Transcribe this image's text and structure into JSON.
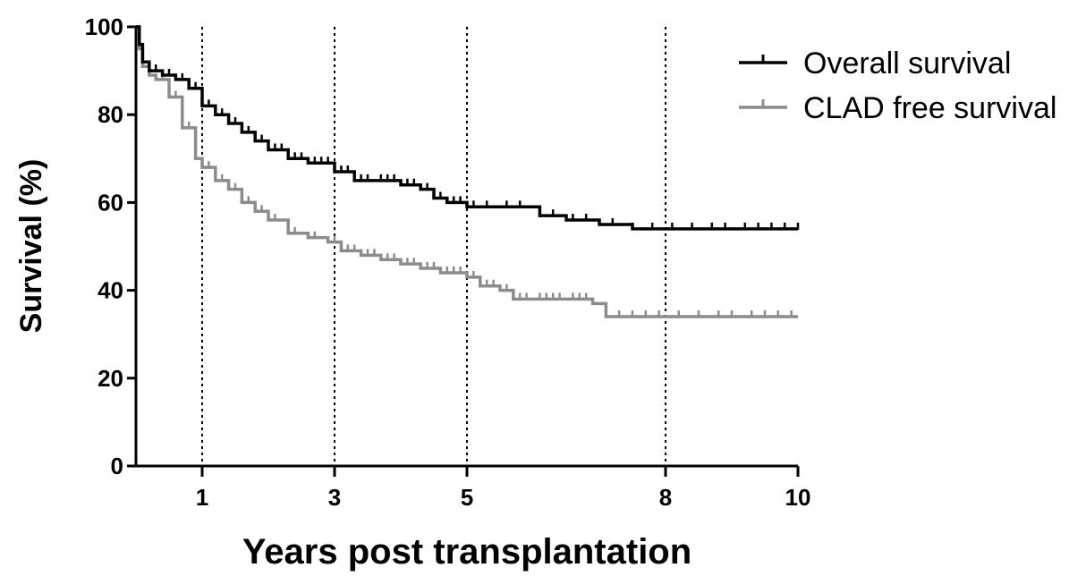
{
  "chart_data": {
    "type": "line",
    "title": "",
    "xlabel": "Years post transplantation",
    "ylabel": "Survival (%)",
    "xlim": [
      0,
      10
    ],
    "ylim": [
      0,
      100
    ],
    "xticks": [
      1,
      3,
      5,
      8,
      10
    ],
    "yticks": [
      0,
      20,
      40,
      60,
      80,
      100
    ],
    "reference_lines_x": [
      1,
      3,
      5,
      8
    ],
    "legend_position": "top-right",
    "series": [
      {
        "name": "Overall survival",
        "color": "#000000",
        "points": [
          [
            0,
            100
          ],
          [
            0.05,
            96
          ],
          [
            0.1,
            92
          ],
          [
            0.2,
            90
          ],
          [
            0.4,
            89
          ],
          [
            0.6,
            88
          ],
          [
            0.8,
            86
          ],
          [
            1.0,
            82
          ],
          [
            1.2,
            80
          ],
          [
            1.4,
            78
          ],
          [
            1.6,
            76
          ],
          [
            1.8,
            74
          ],
          [
            2.0,
            72
          ],
          [
            2.3,
            70
          ],
          [
            2.6,
            69
          ],
          [
            3.0,
            67
          ],
          [
            3.3,
            65
          ],
          [
            3.6,
            65
          ],
          [
            4.0,
            64
          ],
          [
            4.3,
            63
          ],
          [
            4.5,
            61
          ],
          [
            4.7,
            60
          ],
          [
            5.0,
            59
          ],
          [
            5.5,
            59
          ],
          [
            6.0,
            59
          ],
          [
            6.1,
            57
          ],
          [
            6.5,
            56
          ],
          [
            7.0,
            55
          ],
          [
            7.5,
            54
          ],
          [
            8.0,
            54
          ],
          [
            9.0,
            54
          ],
          [
            10.0,
            54
          ]
        ],
        "censor_x": [
          0.3,
          0.5,
          0.7,
          0.9,
          1.1,
          1.3,
          1.5,
          1.7,
          1.9,
          2.1,
          2.2,
          2.4,
          2.5,
          2.7,
          2.8,
          2.9,
          3.1,
          3.2,
          3.4,
          3.5,
          3.7,
          3.8,
          3.9,
          4.1,
          4.2,
          4.4,
          4.6,
          4.8,
          4.9,
          5.1,
          5.3,
          5.6,
          5.8,
          6.3,
          6.6,
          6.8,
          7.2,
          7.5,
          7.8,
          8.1,
          8.4,
          8.7,
          8.9,
          9.2,
          9.4,
          9.6,
          9.8,
          10.0
        ]
      },
      {
        "name": "CLAD free survival",
        "color": "#8c8c8c",
        "points": [
          [
            0,
            100
          ],
          [
            0.05,
            95
          ],
          [
            0.1,
            91
          ],
          [
            0.2,
            89
          ],
          [
            0.3,
            88
          ],
          [
            0.5,
            84
          ],
          [
            0.7,
            77
          ],
          [
            0.9,
            70
          ],
          [
            1.0,
            68
          ],
          [
            1.2,
            65
          ],
          [
            1.4,
            63
          ],
          [
            1.6,
            60
          ],
          [
            1.8,
            58
          ],
          [
            2.0,
            56
          ],
          [
            2.3,
            53
          ],
          [
            2.6,
            52
          ],
          [
            2.9,
            51
          ],
          [
            3.1,
            49
          ],
          [
            3.4,
            48
          ],
          [
            3.7,
            47
          ],
          [
            4.0,
            46
          ],
          [
            4.3,
            45
          ],
          [
            4.6,
            44
          ],
          [
            5.0,
            43
          ],
          [
            5.2,
            41
          ],
          [
            5.5,
            40
          ],
          [
            5.7,
            38
          ],
          [
            6.0,
            38
          ],
          [
            6.5,
            38
          ],
          [
            6.9,
            37
          ],
          [
            7.1,
            34
          ],
          [
            7.5,
            34
          ],
          [
            8.0,
            34
          ],
          [
            9.0,
            34
          ],
          [
            10.0,
            34
          ]
        ],
        "censor_x": [
          0.4,
          0.6,
          0.8,
          1.1,
          1.3,
          1.5,
          1.7,
          1.9,
          2.1,
          2.4,
          2.7,
          3.0,
          3.2,
          3.3,
          3.5,
          3.6,
          3.8,
          3.9,
          4.1,
          4.2,
          4.4,
          4.5,
          4.7,
          4.8,
          4.9,
          5.1,
          5.3,
          5.4,
          5.6,
          5.8,
          5.9,
          6.1,
          6.2,
          6.3,
          6.4,
          6.6,
          6.7,
          6.8,
          7.3,
          7.5,
          7.7,
          7.9,
          8.2,
          8.5,
          8.8,
          9.0,
          9.3,
          9.5,
          9.7,
          9.9
        ]
      }
    ]
  }
}
